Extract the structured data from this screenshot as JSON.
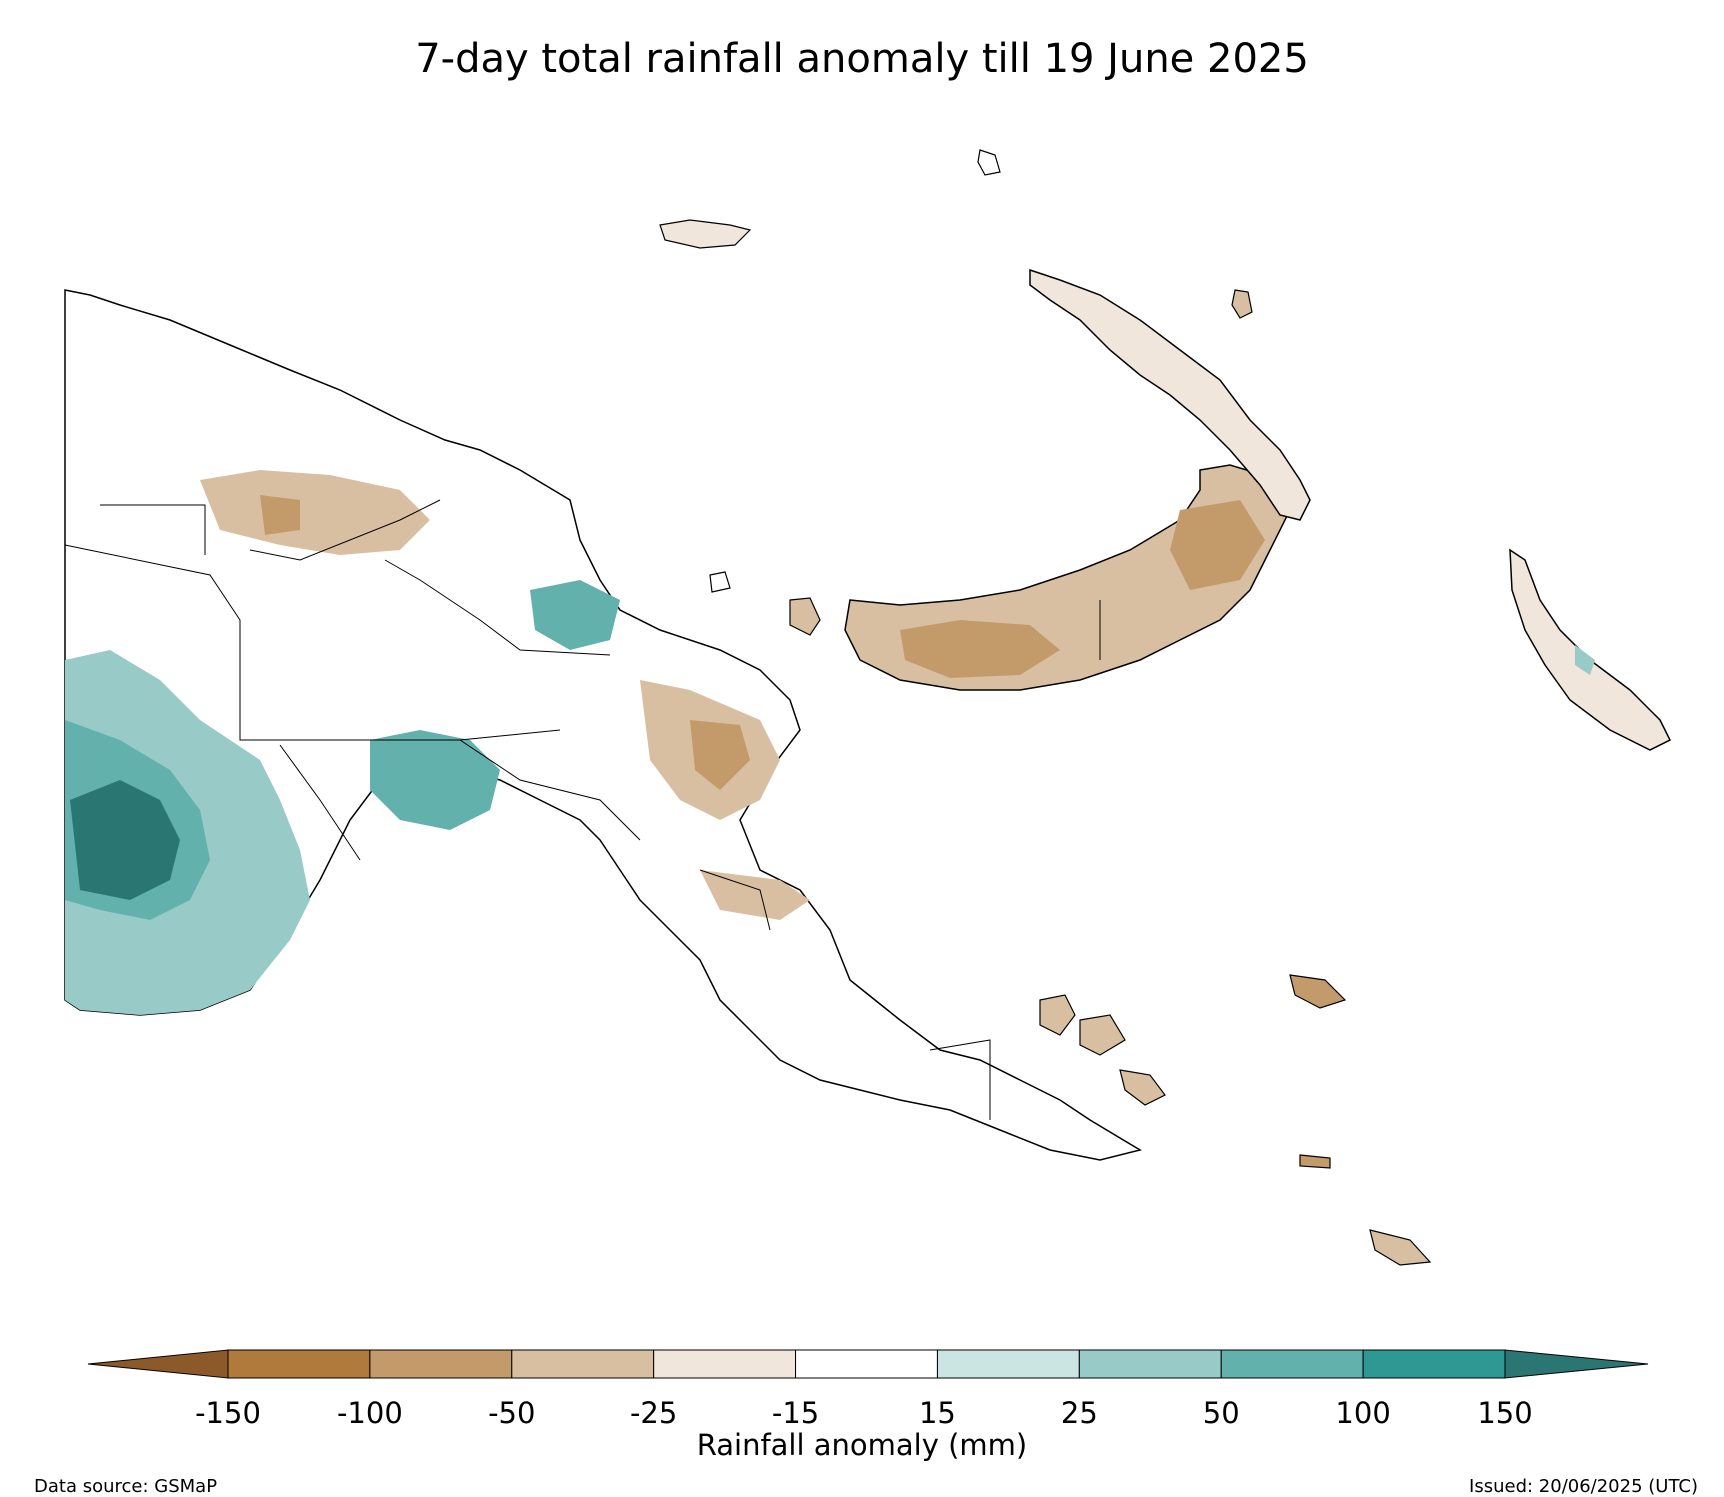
{
  "title": "7-day total rainfall anomaly till 19 June 2025",
  "colorbar": {
    "label": "Rainfall anomaly (mm)",
    "ticks": [
      "-150",
      "-100",
      "-50",
      "-25",
      "-15",
      "15",
      "25",
      "50",
      "100",
      "150"
    ],
    "colors": [
      "#b07a3c",
      "#c39b6b",
      "#d9bfa2",
      "#f0e6dc",
      "#ffffff",
      "#cbe5e3",
      "#98cbc8",
      "#63b1ac",
      "#2e9892"
    ],
    "extend_low_color": "#8c5a2a",
    "extend_high_color": "#2a7672"
  },
  "footer": {
    "source": "Data source: GSMaP",
    "issued": "Issued: 20/06/2025 (UTC)"
  },
  "map": {
    "region": "Papua New Guinea",
    "color_wet_strong": "#2a7672",
    "color_dry": "#c39b6b"
  }
}
